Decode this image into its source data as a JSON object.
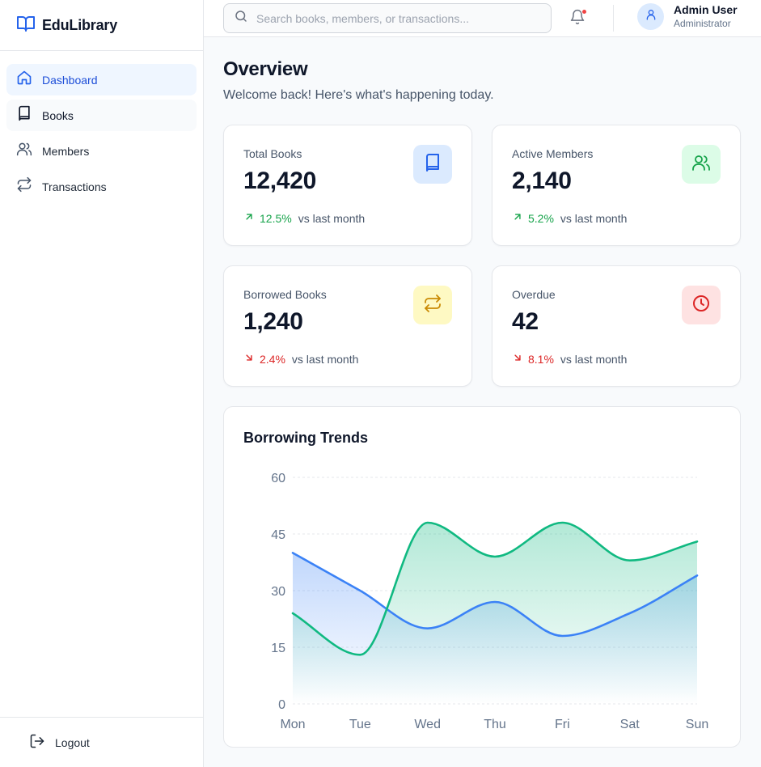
{
  "app": {
    "name": "EduLibrary"
  },
  "sidebar": {
    "items": [
      {
        "label": "Dashboard",
        "icon": "home-icon"
      },
      {
        "label": "Books",
        "icon": "book-icon"
      },
      {
        "label": "Members",
        "icon": "users-icon"
      },
      {
        "label": "Transactions",
        "icon": "transactions-icon"
      }
    ],
    "active": "Dashboard",
    "logout_label": "Logout"
  },
  "header": {
    "search_placeholder": "Search books, members, or transactions...",
    "notifications_unread": true,
    "user": {
      "name": "Admin User",
      "role": "Administrator"
    }
  },
  "page": {
    "title": "Overview",
    "subtitle": "Welcome back! Here's what's happening today."
  },
  "stats": [
    {
      "label": "Total Books",
      "value": "12,420",
      "trend": "12.5%",
      "direction": "up",
      "comparison": "vs last month",
      "icon": "book-icon",
      "icon_bg": "#dbeafe",
      "icon_color": "#2563eb"
    },
    {
      "label": "Active Members",
      "value": "2,140",
      "trend": "5.2%",
      "direction": "up",
      "comparison": "vs last month",
      "icon": "users-icon",
      "icon_bg": "#dcfce7",
      "icon_color": "#16a34a"
    },
    {
      "label": "Borrowed Books",
      "value": "1,240",
      "trend": "2.4%",
      "direction": "down",
      "comparison": "vs last month",
      "icon": "transactions-icon",
      "icon_bg": "#fef9c3",
      "icon_color": "#ca8a04"
    },
    {
      "label": "Overdue",
      "value": "42",
      "trend": "8.1%",
      "direction": "down",
      "comparison": "vs last month",
      "icon": "clock-icon",
      "icon_bg": "#fee2e2",
      "icon_color": "#dc2626"
    }
  ],
  "colors": {
    "up": "#16a34a",
    "down": "#dc2626",
    "accent": "#2563eb"
  },
  "chart_data": {
    "type": "area",
    "title": "Borrowing Trends",
    "categories": [
      "Mon",
      "Tue",
      "Wed",
      "Thu",
      "Fri",
      "Sat",
      "Sun"
    ],
    "ylim": [
      0,
      60
    ],
    "yticks": [
      0,
      15,
      30,
      45,
      60
    ],
    "grid": true,
    "legend": "none",
    "series": [
      {
        "values": [
          40,
          30,
          20,
          27,
          18,
          24,
          34
        ],
        "color": "#3b82f6"
      },
      {
        "values": [
          24,
          13,
          48,
          39,
          48,
          38,
          43
        ],
        "color": "#10b981"
      }
    ]
  }
}
